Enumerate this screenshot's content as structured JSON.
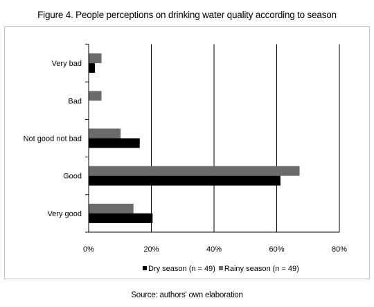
{
  "title": "Figure 4. People perceptions on drinking water quality according to season",
  "source": "Source: authors' own elaboration",
  "colors": {
    "dry": "#000000",
    "rainy": "#6b6b6b",
    "grid": "#000000"
  },
  "chart_data": {
    "type": "bar",
    "orientation": "horizontal",
    "categories": [
      "Very bad",
      "Bad",
      "Not good not bad",
      "Good",
      "Very good"
    ],
    "series": [
      {
        "name": "Dry season (n = 49)",
        "values": [
          2,
          0,
          16.3,
          61.2,
          20.4
        ]
      },
      {
        "name": "Rainy season (n = 49)",
        "values": [
          4.1,
          4.1,
          10.2,
          67.3,
          14.3
        ]
      }
    ],
    "x_ticks": [
      "0%",
      "20%",
      "40%",
      "60%",
      "80%"
    ],
    "xlim": [
      0,
      80
    ],
    "grid": true,
    "legend_position": "bottom"
  }
}
